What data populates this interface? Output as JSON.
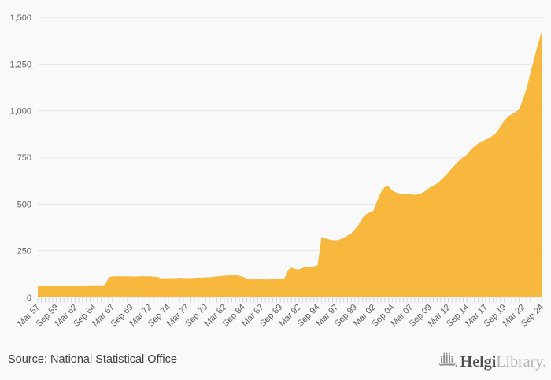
{
  "chart_data": {
    "type": "area",
    "title": "",
    "xlabel": "",
    "ylabel": "",
    "ylim": [
      0,
      1500
    ],
    "grid": "on",
    "legend": "off",
    "frequency": "semiannual",
    "x_start": "Mar 57",
    "x_end": "Sep 24",
    "x_tick_labels": [
      "Mar 57",
      "Sep 59",
      "Mar 62",
      "Sep 64",
      "Mar 67",
      "Sep 69",
      "Mar 72",
      "Sep 74",
      "Mar 77",
      "Sep 79",
      "Mar 82",
      "Sep 84",
      "Mar 87",
      "Sep 89",
      "Mar 92",
      "Sep 94",
      "Mar 97",
      "Sep 99",
      "Mar 02",
      "Sep 04",
      "Mar 07",
      "Sep 09",
      "Mar 12",
      "Sep 14",
      "Mar 17",
      "Sep 19",
      "Mar 22",
      "Sep 24"
    ],
    "y_tick_labels": [
      "0",
      "250",
      "500",
      "750",
      "1,000",
      "1,250",
      "1,500"
    ],
    "y_ticks": [
      0,
      250,
      500,
      750,
      1000,
      1250,
      1500
    ],
    "series": [
      {
        "name": "value",
        "values": [
          62,
          62,
          62,
          62,
          62,
          62,
          62,
          63,
          63,
          63,
          63,
          63,
          63,
          64,
          64,
          64,
          64,
          64,
          64,
          108,
          112,
          112,
          113,
          112,
          112,
          112,
          111,
          112,
          113,
          112,
          112,
          111,
          110,
          101,
          103,
          102,
          104,
          103,
          105,
          104,
          103,
          104,
          105,
          107,
          106,
          108,
          107,
          110,
          112,
          114,
          116,
          118,
          120,
          119,
          116,
          110,
          99,
          97,
          96,
          98,
          97,
          96,
          97,
          98,
          97,
          99,
          97,
          146,
          159,
          151,
          149,
          158,
          164,
          159,
          166,
          172,
          322,
          316,
          310,
          306,
          305,
          310,
          318,
          330,
          342,
          365,
          390,
          425,
          445,
          455,
          465,
          520,
          565,
          592,
          594,
          572,
          562,
          556,
          554,
          551,
          553,
          549,
          553,
          560,
          572,
          588,
          598,
          610,
          628,
          648,
          668,
          692,
          714,
          733,
          750,
          763,
          790,
          808,
          824,
          836,
          843,
          852,
          868,
          885,
          915,
          947,
          968,
          982,
          992,
          1008,
          1060,
          1120,
          1200,
          1278,
          1354,
          1420
        ]
      }
    ],
    "colors": {
      "area": "#f8b83d",
      "grid": "#e6e6e6",
      "tick": "#ccd6eb",
      "axis_label": "#606060",
      "background": "#f9f9f9"
    }
  },
  "footer": {
    "source_label": "Source: National Statistical Office"
  },
  "logo": {
    "brand_primary": "Helgi",
    "brand_secondary": "Library.",
    "icon": "bridge-icon"
  }
}
